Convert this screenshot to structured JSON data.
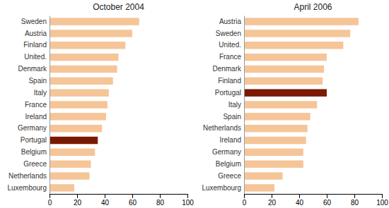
{
  "chart_data": [
    {
      "type": "bar",
      "orientation": "horizontal",
      "title": "October 2004",
      "categories": [
        "Sweden",
        "Austria",
        "Finland",
        "United.",
        "Denmark",
        "Spain",
        "Italy",
        "France",
        "Ireland",
        "Germany",
        "Portugal",
        "Belgium",
        "Greece",
        "Netherlands",
        "Luxembourg"
      ],
      "values": [
        65,
        60,
        55,
        50,
        49,
        46,
        43,
        42,
        41,
        38,
        35,
        33,
        30,
        29,
        18
      ],
      "colors": [
        "#F5C598",
        "#F5C598",
        "#F5C598",
        "#F5C598",
        "#F5C598",
        "#F5C598",
        "#F5C598",
        "#F5C598",
        "#F5C598",
        "#F5C598",
        "#7B1A00",
        "#F5C598",
        "#F5C598",
        "#F5C598",
        "#F5C598"
      ],
      "xlim": [
        0,
        100
      ],
      "xticks": [
        0,
        20,
        40,
        60,
        80,
        100
      ],
      "grid": false
    },
    {
      "type": "bar",
      "orientation": "horizontal",
      "title": "April 2006",
      "categories": [
        "Austria",
        "Sweden",
        "United.",
        "France",
        "Denmark",
        "Finland",
        "Portugal",
        "Italy",
        "Spain",
        "Netherlands",
        "Ireland",
        "Germany",
        "Belgium",
        "Greece",
        "Luxembourg"
      ],
      "values": [
        83,
        77,
        72,
        60,
        58,
        57,
        60,
        53,
        48,
        46,
        45,
        43,
        43,
        28,
        22
      ],
      "colors": [
        "#F5C598",
        "#F5C598",
        "#F5C598",
        "#F5C598",
        "#F5C598",
        "#F5C598",
        "#7B1A00",
        "#F5C598",
        "#F5C598",
        "#F5C598",
        "#F5C598",
        "#F5C598",
        "#F5C598",
        "#F5C598",
        "#F5C598"
      ],
      "xlim": [
        0,
        100
      ],
      "xticks": [
        0,
        20,
        40,
        60,
        80,
        100
      ],
      "grid": false
    }
  ]
}
